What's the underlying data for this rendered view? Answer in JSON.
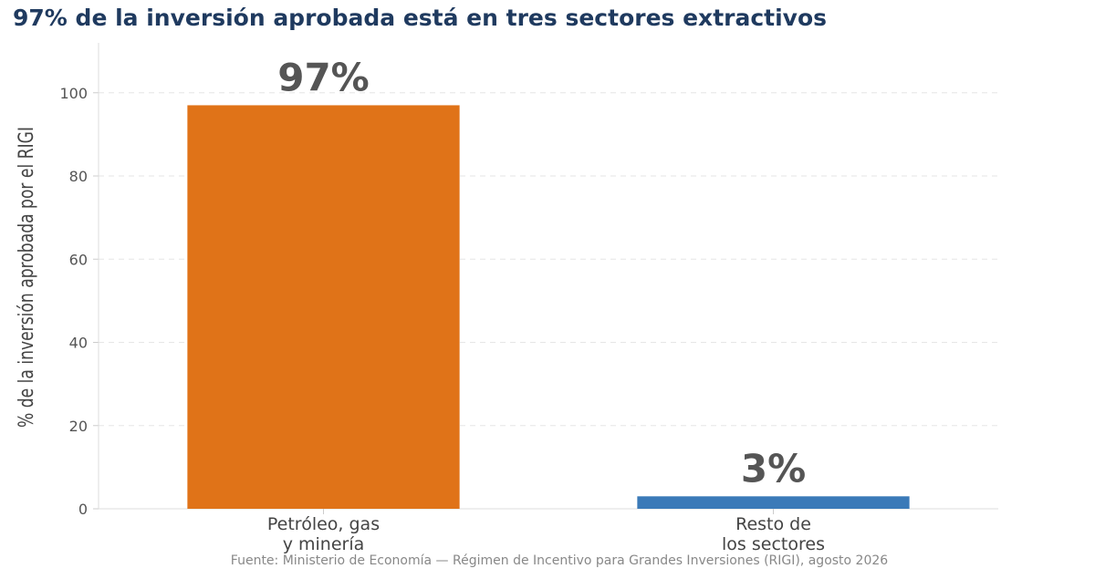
{
  "chart_data": {
    "type": "bar",
    "title": "97% de la inversión aprobada está en tres sectores extractivos",
    "ylabel": "% de la inversión aprobada por el RIGI",
    "xlabel": "",
    "ylim": [
      0,
      112
    ],
    "yticks": [
      0,
      20,
      40,
      60,
      80,
      100
    ],
    "grid": true,
    "categories": [
      [
        "Petróleo, gas",
        "y minería"
      ],
      [
        "Resto de",
        "los sectores"
      ]
    ],
    "values": [
      97,
      3
    ],
    "data_labels": [
      "97%",
      "3%"
    ],
    "colors": [
      "#e07318",
      "#3b7ab8"
    ],
    "source": "Fuente: Ministerio de Economía — Régimen de Incentivo para Grandes Inversiones (RIGI), agosto 2026"
  }
}
